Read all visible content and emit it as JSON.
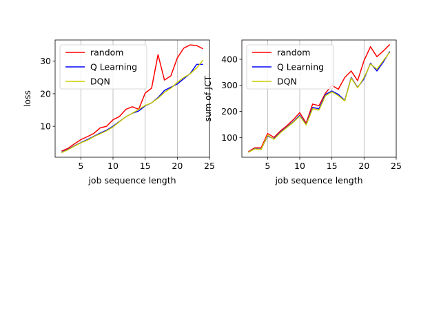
{
  "chart_data": [
    {
      "type": "line",
      "title": "",
      "xlabel": "job sequence length",
      "ylabel": "loss",
      "xlim": [
        1,
        25
      ],
      "ylim": [
        0.5,
        36.5
      ],
      "xticks": [
        5,
        10,
        15,
        20,
        25
      ],
      "yticks": [
        10,
        20,
        30
      ],
      "grid": "vertical",
      "legend_position": "top-left",
      "x": [
        2,
        3,
        4,
        5,
        6,
        7,
        8,
        9,
        10,
        11,
        12,
        13,
        14,
        15,
        16,
        17,
        18,
        19,
        20,
        21,
        22,
        23,
        24
      ],
      "series": [
        {
          "name": "random",
          "color": "#ff0000",
          "values": [
            2.4,
            3.2,
            4.6,
            5.9,
            6.8,
            7.8,
            9.5,
            10.0,
            12.0,
            13.0,
            15.2,
            16.0,
            15.2,
            20.2,
            21.7,
            32.0,
            24.2,
            25.5,
            31.0,
            34.0,
            35.0,
            34.8,
            33.8
          ]
        },
        {
          "name": "Q Learning",
          "color": "#0000ff",
          "values": [
            2.0,
            2.9,
            4.0,
            5.0,
            5.9,
            6.9,
            7.9,
            8.8,
            10.0,
            11.5,
            12.9,
            14.0,
            14.7,
            16.3,
            17.2,
            18.8,
            21.0,
            22.0,
            23.0,
            24.6,
            26.2,
            29.0,
            29.0
          ]
        },
        {
          "name": "DQN",
          "color": "#cccc00",
          "values": [
            1.9,
            2.8,
            3.9,
            4.9,
            5.7,
            6.8,
            7.7,
            8.6,
            9.8,
            11.4,
            12.9,
            14.0,
            15.2,
            16.4,
            17.2,
            18.6,
            20.4,
            21.7,
            23.5,
            25.0,
            26.1,
            27.9,
            30.3
          ]
        }
      ]
    },
    {
      "type": "line",
      "title": "",
      "xlabel": "job sequence length",
      "ylabel": "sum of JCT",
      "xlim": [
        1,
        25
      ],
      "ylim": [
        24,
        474
      ],
      "xticks": [
        5,
        10,
        15,
        20,
        25
      ],
      "yticks": [
        100,
        200,
        300,
        400
      ],
      "grid": "vertical",
      "legend_position": "top-left",
      "x": [
        2,
        3,
        4,
        5,
        6,
        7,
        8,
        9,
        10,
        11,
        12,
        13,
        14,
        15,
        16,
        17,
        18,
        19,
        20,
        21,
        22,
        23,
        24
      ],
      "series": [
        {
          "name": "random",
          "color": "#ff0000",
          "values": [
            45,
            60,
            60,
            115,
            100,
            125,
            145,
            168,
            195,
            155,
            228,
            222,
            270,
            300,
            285,
            330,
            355,
            318,
            395,
            448,
            410,
            432,
            457
          ]
        },
        {
          "name": "Q Learning",
          "color": "#0000ff",
          "values": [
            43,
            57,
            55,
            105,
            95,
            120,
            140,
            160,
            185,
            150,
            215,
            210,
            265,
            278,
            265,
            242,
            330,
            292,
            325,
            385,
            355,
            390,
            430
          ]
        },
        {
          "name": "DQN",
          "color": "#cccc00",
          "values": [
            43,
            56,
            54,
            108,
            93,
            118,
            138,
            158,
            182,
            148,
            210,
            205,
            260,
            275,
            260,
            240,
            328,
            290,
            330,
            382,
            362,
            395,
            427
          ]
        }
      ]
    }
  ]
}
